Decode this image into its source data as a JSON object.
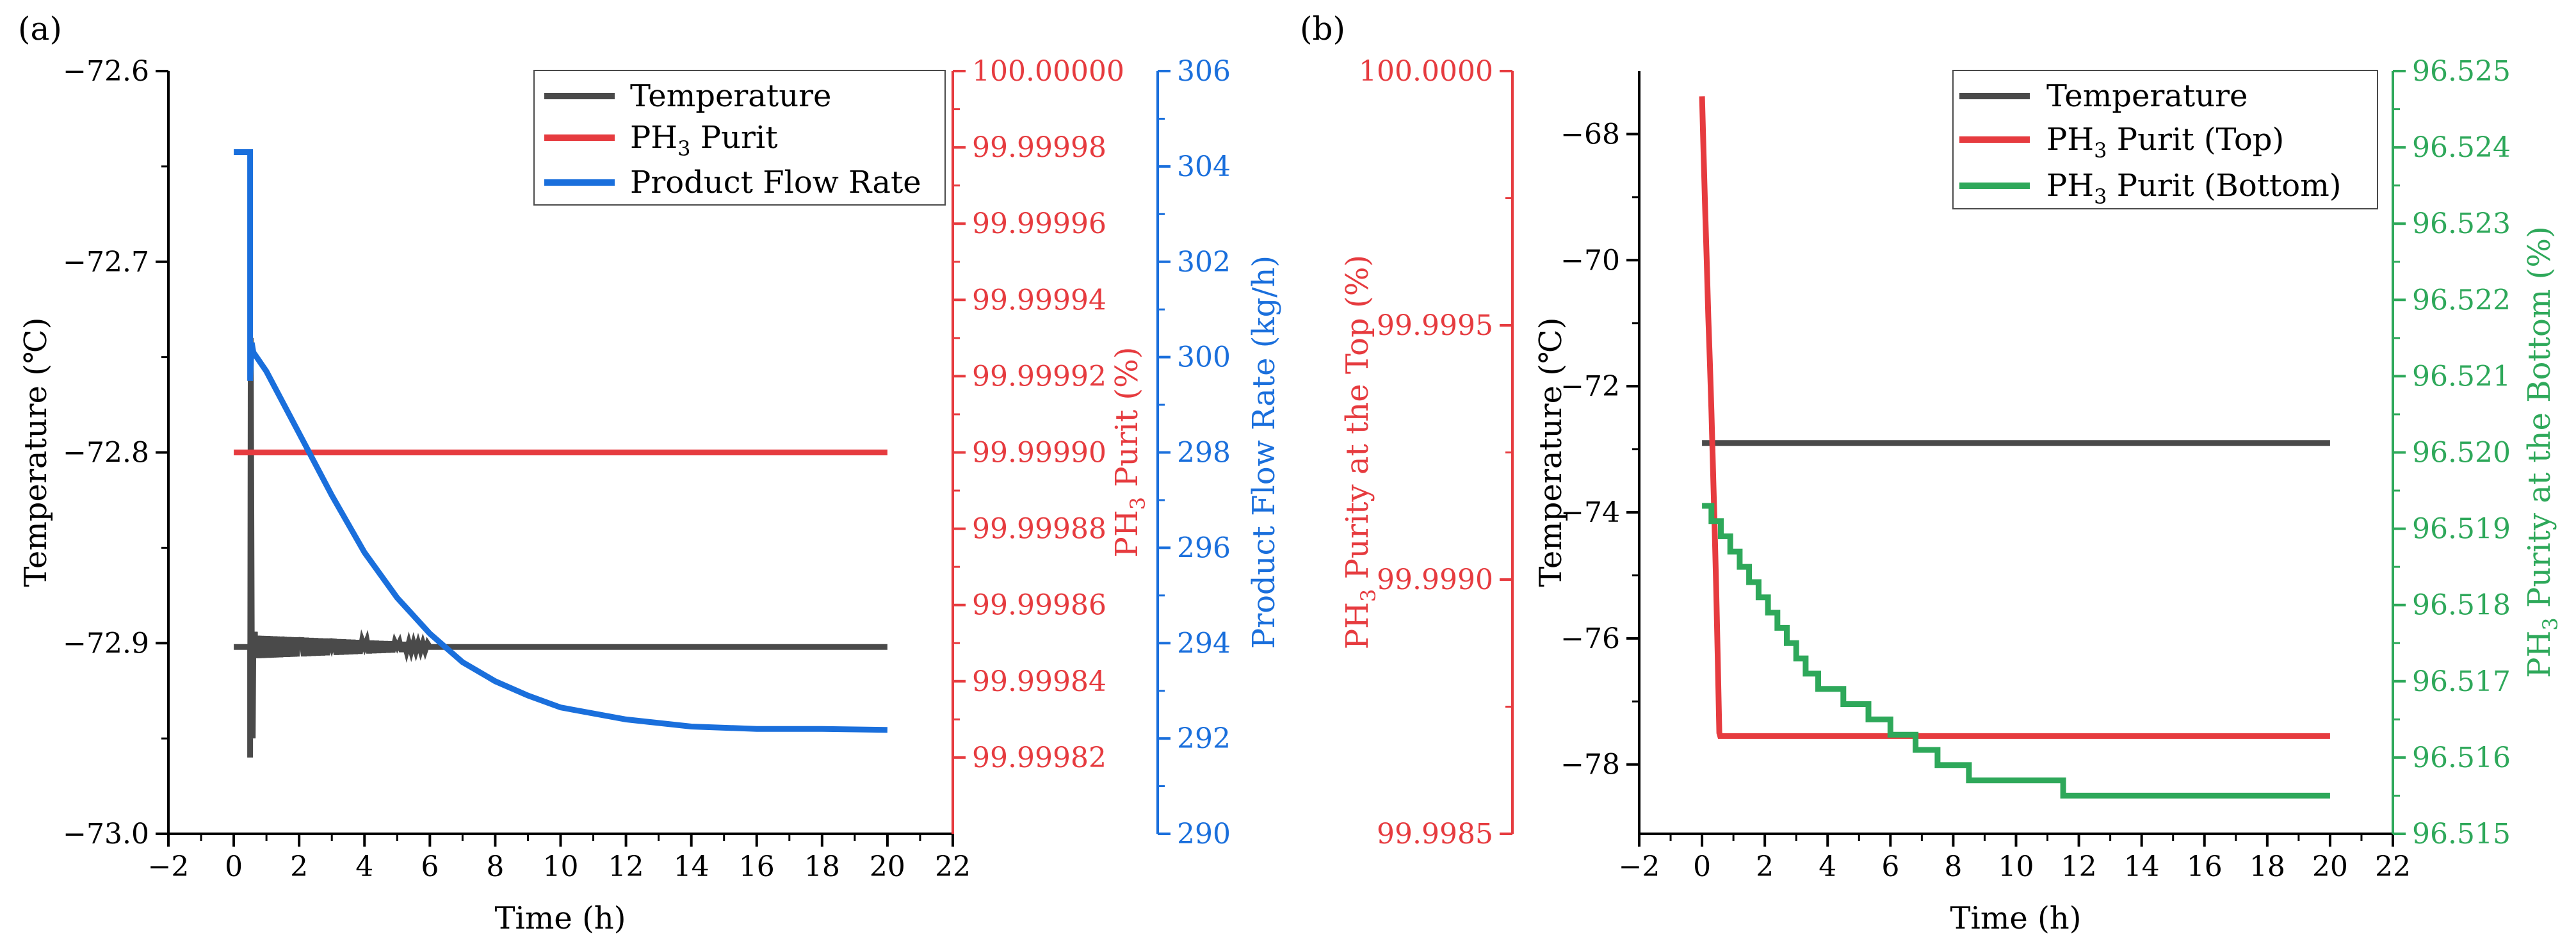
{
  "colors": {
    "axis": "#000000",
    "temperature": "#4a4a4a",
    "purity": "#e63b3f",
    "flow": "#1a6fdc",
    "bottom_purity": "#2ea85a"
  },
  "chart_data": [
    {
      "panel": "(a)",
      "type": "line",
      "xlabel": "Time (h)",
      "xlim": [
        -2,
        22
      ],
      "xticks": [
        "−2",
        "0",
        "2",
        "4",
        "6",
        "8",
        "10",
        "12",
        "14",
        "16",
        "18",
        "20",
        "22"
      ],
      "axes": {
        "left": {
          "label": "Temperature (℃)",
          "lim": [
            -73.0,
            -72.6
          ],
          "ticks": [
            {
              "v": -73.0,
              "t": "−73.0"
            },
            {
              "v": -72.9,
              "t": "−72.9"
            },
            {
              "v": -72.8,
              "t": "−72.8"
            },
            {
              "v": -72.7,
              "t": "−72.7"
            },
            {
              "v": -72.6,
              "t": "−72.6"
            }
          ]
        },
        "right1": {
          "label_main": "PH",
          "label_sub": "3",
          "label_rest": " Purit (%)",
          "lim": [
            99.9998,
            100.0
          ],
          "ticks": [
            {
              "v": 99.99982,
              "t": "99.99982"
            },
            {
              "v": 99.99984,
              "t": "99.99984"
            },
            {
              "v": 99.99986,
              "t": "99.99986"
            },
            {
              "v": 99.99988,
              "t": "99.99988"
            },
            {
              "v": 99.9999,
              "t": "99.99990"
            },
            {
              "v": 99.99992,
              "t": "99.99992"
            },
            {
              "v": 99.99994,
              "t": "99.99994"
            },
            {
              "v": 99.99996,
              "t": "99.99996"
            },
            {
              "v": 99.99998,
              "t": "99.99998"
            },
            {
              "v": 100.0,
              "t": "100.00000"
            }
          ]
        },
        "right2": {
          "label": "Product Flow Rate (kg/h)",
          "lim": [
            290,
            306
          ],
          "ticks": [
            {
              "v": 290,
              "t": "290"
            },
            {
              "v": 292,
              "t": "292"
            },
            {
              "v": 294,
              "t": "294"
            },
            {
              "v": 296,
              "t": "296"
            },
            {
              "v": 298,
              "t": "298"
            },
            {
              "v": 300,
              "t": "300"
            },
            {
              "v": 302,
              "t": "302"
            },
            {
              "v": 304,
              "t": "304"
            },
            {
              "v": 306,
              "t": "306"
            }
          ]
        }
      },
      "series": [
        {
          "name": "Temperature",
          "axis": "left",
          "color_key": "temperature",
          "kind": "osc",
          "x": [
            0,
            0.5,
            0.5,
            0.52,
            0.55,
            0.58,
            0.6,
            0.65,
            0.7,
            0.8,
            1.0,
            1.5,
            2.0,
            3.0,
            4.0,
            5.0,
            6.0,
            20.0
          ],
          "y": [
            -72.902,
            -72.902,
            -72.96,
            -72.74,
            -72.9,
            -72.95,
            -72.897,
            -72.9,
            -72.902,
            -72.902,
            -72.902,
            -72.902,
            -72.902,
            -72.902,
            -72.902,
            -72.902,
            -72.902,
            -72.902
          ],
          "osc_from": 0.6,
          "osc_to": 6.0,
          "osc_amp": 0.006
        },
        {
          "name": "PH₃ Purit",
          "axis": "right1",
          "color_key": "purity",
          "kind": "line",
          "x": [
            0,
            20
          ],
          "y": [
            99.9999,
            99.9999
          ]
        },
        {
          "name": "Product Flow Rate",
          "axis": "right2",
          "color_key": "flow",
          "kind": "line",
          "x": [
            0,
            0.5,
            0.5,
            0.55,
            0.6,
            0.7,
            1,
            2,
            3,
            4,
            5,
            6,
            7,
            8,
            9,
            10,
            12,
            14,
            16,
            18,
            20
          ],
          "y": [
            304.3,
            304.3,
            299.5,
            300.3,
            300.1,
            300.0,
            299.7,
            298.4,
            297.1,
            295.9,
            294.95,
            294.2,
            293.6,
            293.2,
            292.9,
            292.65,
            292.4,
            292.25,
            292.2,
            292.2,
            292.18
          ]
        }
      ],
      "legend": {
        "position": "top-right",
        "entries": [
          {
            "main": "Temperature",
            "color_key": "temperature"
          },
          {
            "main": "PH",
            "sub": "3",
            "rest": " Purit",
            "color_key": "purity"
          },
          {
            "main": "Product Flow Rate",
            "color_key": "flow"
          }
        ]
      }
    },
    {
      "panel": "(b)",
      "type": "line",
      "xlabel": "Time (h)",
      "xlim": [
        -2,
        22
      ],
      "xticks": [
        "−2",
        "0",
        "2",
        "4",
        "6",
        "8",
        "10",
        "12",
        "14",
        "16",
        "18",
        "20",
        "22"
      ],
      "axes": {
        "left": {
          "label": "Temperature (℃)",
          "lim": [
            -79.1,
            -67.0
          ],
          "ticks": [
            {
              "v": -78,
              "t": "−78"
            },
            {
              "v": -76,
              "t": "−76"
            },
            {
              "v": -74,
              "t": "−74"
            },
            {
              "v": -72,
              "t": "−72"
            },
            {
              "v": -70,
              "t": "−70"
            },
            {
              "v": -68,
              "t": "−68"
            }
          ]
        },
        "right1": {
          "label_main": "PH",
          "label_sub": "3",
          "label_rest": " Purity at the Bottom (%)",
          "lim": [
            96.515,
            96.525
          ],
          "ticks": [
            {
              "v": 96.515,
              "t": "96.515"
            },
            {
              "v": 96.516,
              "t": "96.516"
            },
            {
              "v": 96.517,
              "t": "96.517"
            },
            {
              "v": 96.518,
              "t": "96.518"
            },
            {
              "v": 96.519,
              "t": "96.519"
            },
            {
              "v": 96.52,
              "t": "96.520"
            },
            {
              "v": 96.521,
              "t": "96.521"
            },
            {
              "v": 96.522,
              "t": "96.522"
            },
            {
              "v": 96.523,
              "t": "96.523"
            },
            {
              "v": 96.524,
              "t": "96.524"
            },
            {
              "v": 96.525,
              "t": "96.525"
            }
          ]
        },
        "offset_left": {
          "label_main": "PH",
          "label_sub": "3",
          "label_rest": " Purity at the Top (%)",
          "lim": [
            99.9985,
            100.0
          ],
          "ticks": [
            {
              "v": 99.9985,
              "t": "99.9985"
            },
            {
              "v": 99.999,
              "t": "99.9990"
            },
            {
              "v": 99.9995,
              "t": "99.9995"
            },
            {
              "v": 100.0,
              "t": "100.0000"
            }
          ]
        }
      },
      "series": [
        {
          "name": "Temperature",
          "axis": "left",
          "color_key": "temperature",
          "kind": "line",
          "x": [
            0,
            20
          ],
          "y": [
            -72.9,
            -72.9
          ]
        },
        {
          "name": "PH₃ Purit (Top)",
          "axis": "left",
          "color_key": "purity",
          "kind": "line",
          "x": [
            0,
            0.05,
            0.1,
            0.15,
            0.2,
            0.25,
            0.3,
            0.35,
            0.4,
            0.45,
            0.5,
            0.55,
            0.58,
            20
          ],
          "y": [
            -67.4,
            -68.3,
            -69.2,
            -70.0,
            -70.9,
            -71.6,
            -72.4,
            -73.3,
            -74.2,
            -75.2,
            -76.3,
            -77.5,
            -77.55,
            -77.55
          ]
        },
        {
          "name": "PH₃ Purit (Bottom)",
          "axis": "right1",
          "color_key": "bottom_purity",
          "kind": "step",
          "x": [
            0,
            0.3,
            0.6,
            0.9,
            1.2,
            1.5,
            1.8,
            2.1,
            2.4,
            2.7,
            3.0,
            3.3,
            3.7,
            4.5,
            5.3,
            6.0,
            6.8,
            7.5,
            8.5,
            11.5,
            20
          ],
          "y": [
            96.5193,
            96.5191,
            96.5189,
            96.5187,
            96.5185,
            96.5183,
            96.5181,
            96.5179,
            96.5177,
            96.5175,
            96.5173,
            96.5171,
            96.5169,
            96.5167,
            96.5165,
            96.5163,
            96.5161,
            96.5159,
            96.5157,
            96.5155,
            96.5155
          ]
        }
      ],
      "legend": {
        "position": "top-right",
        "entries": [
          {
            "main": "Temperature",
            "color_key": "temperature"
          },
          {
            "main": "PH",
            "sub": "3",
            "rest": " Purit (Top)",
            "color_key": "purity"
          },
          {
            "main": "PH",
            "sub": "3",
            "rest": " Purit (Bottom)",
            "color_key": "bottom_purity"
          }
        ]
      }
    }
  ]
}
